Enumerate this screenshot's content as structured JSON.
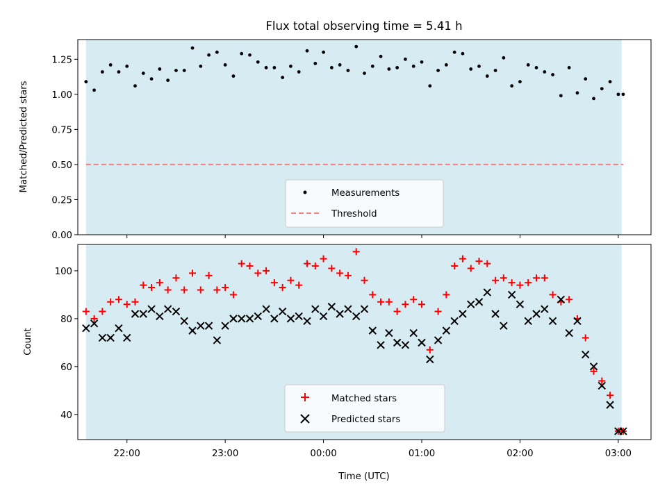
{
  "chart_data": [
    {
      "type": "scatter",
      "title": "Flux total observing time = 5.41 h",
      "xlabel": "",
      "ylabel": "Matched/Predicted stars",
      "ylim": [
        0,
        1.39
      ],
      "yticks": [
        "0.00",
        "0.25",
        "0.50",
        "0.75",
        "1.00",
        "1.25"
      ],
      "x_ticks_shared": true,
      "shaded_span": [
        "21:35",
        "03:02"
      ],
      "shade_color": "#add8e6",
      "legend": {
        "placement": "lower center"
      },
      "series": [
        {
          "name": "Measurements",
          "marker": "dot",
          "color": "#000000",
          "x": [
            "21:35",
            "21:40",
            "21:45",
            "21:50",
            "21:55",
            "22:00",
            "22:05",
            "22:10",
            "22:15",
            "22:20",
            "22:25",
            "22:30",
            "22:35",
            "22:40",
            "22:45",
            "22:50",
            "22:55",
            "23:00",
            "23:05",
            "23:10",
            "23:15",
            "23:20",
            "23:25",
            "23:30",
            "23:35",
            "23:40",
            "23:45",
            "23:50",
            "23:55",
            "00:00",
            "00:05",
            "00:10",
            "00:15",
            "00:20",
            "00:25",
            "00:30",
            "00:35",
            "00:40",
            "00:45",
            "00:50",
            "00:55",
            "01:00",
            "01:05",
            "01:10",
            "01:15",
            "01:20",
            "01:25",
            "01:30",
            "01:35",
            "01:40",
            "01:45",
            "01:50",
            "01:55",
            "02:00",
            "02:05",
            "02:10",
            "02:15",
            "02:20",
            "02:25",
            "02:30",
            "02:35",
            "02:40",
            "02:45",
            "02:50",
            "02:55",
            "03:00",
            "03:03"
          ],
          "values": [
            1.09,
            1.03,
            1.16,
            1.21,
            1.16,
            1.2,
            1.06,
            1.15,
            1.11,
            1.18,
            1.1,
            1.17,
            1.17,
            1.33,
            1.2,
            1.28,
            1.3,
            1.21,
            1.13,
            1.29,
            1.28,
            1.23,
            1.19,
            1.19,
            1.12,
            1.2,
            1.16,
            1.31,
            1.22,
            1.3,
            1.19,
            1.21,
            1.17,
            1.34,
            1.15,
            1.2,
            1.27,
            1.18,
            1.19,
            1.25,
            1.2,
            1.23,
            1.06,
            1.17,
            1.21,
            1.3,
            1.29,
            1.18,
            1.2,
            1.13,
            1.17,
            1.26,
            1.06,
            1.09,
            1.21,
            1.19,
            1.16,
            1.14,
            0.99,
            1.19,
            1.01,
            1.11,
            0.97,
            1.04,
            1.09,
            1.0,
            1.0
          ]
        },
        {
          "name": "Threshold",
          "marker": "dashed-line",
          "color": "#f08080",
          "x": [
            "21:35",
            "03:03"
          ],
          "values": [
            0.5,
            0.5
          ]
        }
      ]
    },
    {
      "type": "scatter",
      "title": "",
      "xlabel": "Time (UTC)",
      "ylabel": "Count",
      "ylim": [
        29.5,
        111
      ],
      "yticks": [
        "40",
        "60",
        "80",
        "100"
      ],
      "xlim": [
        "21:30",
        "03:20"
      ],
      "xticks": [
        "22:00",
        "23:00",
        "00:00",
        "01:00",
        "02:00",
        "03:00"
      ],
      "shaded_span": [
        "21:35",
        "03:02"
      ],
      "shade_color": "#add8e6",
      "legend": {
        "placement": "lower center"
      },
      "series": [
        {
          "name": "Matched stars",
          "marker": "plus",
          "color": "#ff0000",
          "x": [
            "21:35",
            "21:40",
            "21:45",
            "21:50",
            "21:55",
            "22:00",
            "22:05",
            "22:10",
            "22:15",
            "22:20",
            "22:25",
            "22:30",
            "22:35",
            "22:40",
            "22:45",
            "22:50",
            "22:55",
            "23:00",
            "23:05",
            "23:10",
            "23:15",
            "23:20",
            "23:25",
            "23:30",
            "23:35",
            "23:40",
            "23:45",
            "23:50",
            "23:55",
            "00:00",
            "00:05",
            "00:10",
            "00:15",
            "00:20",
            "00:25",
            "00:30",
            "00:35",
            "00:40",
            "00:45",
            "00:50",
            "00:55",
            "01:00",
            "01:05",
            "01:10",
            "01:15",
            "01:20",
            "01:25",
            "01:30",
            "01:35",
            "01:40",
            "01:45",
            "01:50",
            "01:55",
            "02:00",
            "02:05",
            "02:10",
            "02:15",
            "02:20",
            "02:25",
            "02:30",
            "02:35",
            "02:40",
            "02:45",
            "02:50",
            "02:55",
            "03:00",
            "03:03"
          ],
          "values": [
            83,
            80,
            83,
            87,
            88,
            86,
            87,
            94,
            93,
            95,
            92,
            97,
            92,
            99,
            92,
            98,
            92,
            93,
            90,
            103,
            102,
            99,
            100,
            95,
            93,
            96,
            94,
            103,
            102,
            105,
            101,
            99,
            98,
            108,
            96,
            90,
            87,
            87,
            83,
            86,
            88,
            86,
            67,
            83,
            90,
            102,
            105,
            101,
            104,
            103,
            96,
            97,
            95,
            94,
            95,
            97,
            97,
            90,
            87,
            88,
            80,
            72,
            58,
            54,
            48,
            33,
            33
          ]
        },
        {
          "name": "Predicted stars",
          "marker": "x",
          "color": "#000000",
          "x": [
            "21:35",
            "21:40",
            "21:45",
            "21:50",
            "21:55",
            "22:00",
            "22:05",
            "22:10",
            "22:15",
            "22:20",
            "22:25",
            "22:30",
            "22:35",
            "22:40",
            "22:45",
            "22:50",
            "22:55",
            "23:00",
            "23:05",
            "23:10",
            "23:15",
            "23:20",
            "23:25",
            "23:30",
            "23:35",
            "23:40",
            "23:45",
            "23:50",
            "23:55",
            "00:00",
            "00:05",
            "00:10",
            "00:15",
            "00:20",
            "00:25",
            "00:30",
            "00:35",
            "00:40",
            "00:45",
            "00:50",
            "00:55",
            "01:00",
            "01:05",
            "01:10",
            "01:15",
            "01:20",
            "01:25",
            "01:30",
            "01:35",
            "01:40",
            "01:45",
            "01:50",
            "01:55",
            "02:00",
            "02:05",
            "02:10",
            "02:15",
            "02:20",
            "02:25",
            "02:30",
            "02:35",
            "02:40",
            "02:45",
            "02:50",
            "02:55",
            "03:00",
            "03:03"
          ],
          "values": [
            76,
            78,
            72,
            72,
            76,
            72,
            82,
            82,
            84,
            81,
            84,
            83,
            79,
            75,
            77,
            77,
            71,
            77,
            80,
            80,
            80,
            81,
            84,
            80,
            83,
            80,
            81,
            79,
            84,
            81,
            85,
            82,
            84,
            81,
            84,
            75,
            69,
            74,
            70,
            69,
            74,
            70,
            63,
            71,
            75,
            79,
            82,
            86,
            87,
            91,
            82,
            77,
            90,
            86,
            79,
            82,
            84,
            79,
            88,
            74,
            79,
            65,
            60,
            52,
            44,
            33,
            33
          ]
        }
      ]
    }
  ]
}
